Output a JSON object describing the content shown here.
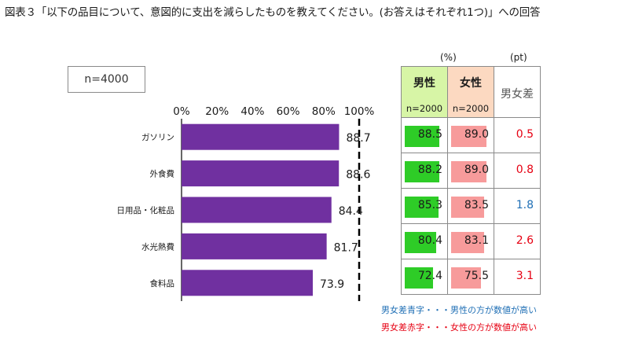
{
  "title": "図表３「以下の品目について、意図的に支出を減らしたものを教えてください。(お答えはそれぞれ1つ)」への回答",
  "sample_label": "n=4000",
  "table": {
    "unit_pct": "(%)",
    "unit_pt": "(pt)",
    "male_label": "男性",
    "female_label": "女性",
    "male_n": "n=2000",
    "female_n": "n=2000",
    "diff_label": "男女差",
    "male_values": [
      "88.5",
      "88.2",
      "85.3",
      "80.4",
      "72.4"
    ],
    "female_values": [
      "89.0",
      "89.0",
      "83.5",
      "83.1",
      "75.5"
    ],
    "diff_values": [
      "0.5",
      "0.8",
      "1.8",
      "2.6",
      "3.1"
    ]
  },
  "legend": {
    "blue": "男女差青字・・・男性の方が数値が高い",
    "red": "男女差赤字・・・女性の方が数値が高い"
  },
  "colors": {
    "bar": "#7030a0",
    "male_bar": "#2ecc27",
    "female_bar": "#f79b9b",
    "blue_text": "#1f6fb5",
    "red_text": "#e60012"
  },
  "chart_data": {
    "type": "bar",
    "orientation": "horizontal",
    "categories": [
      "ガソリン",
      "外食費",
      "日用品・化粧品",
      "水光熱費",
      "食料品"
    ],
    "values": [
      88.7,
      88.6,
      84.4,
      81.7,
      73.9
    ],
    "value_labels": [
      "88.7",
      "88.6",
      "84.4",
      "81.7",
      "73.9"
    ],
    "xlim": [
      0,
      100
    ],
    "ticks": [
      "0%",
      "20%",
      "40%",
      "60%",
      "80%",
      "100%"
    ],
    "gender_diff_sign": [
      "red",
      "red",
      "blue",
      "red",
      "red"
    ]
  }
}
